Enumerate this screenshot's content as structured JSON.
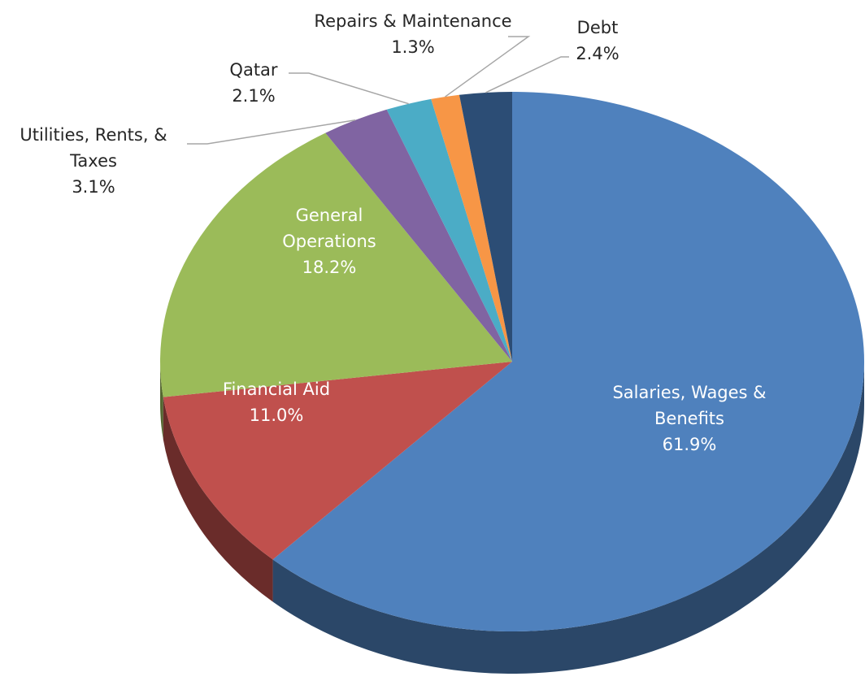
{
  "chart_data": {
    "type": "pie",
    "categories": [
      "Salaries, Wages & Benefits",
      "Financial Aid",
      "General Operations",
      "Utilities, Rents, & Taxes",
      "Qatar",
      "Repairs & Maintenance",
      "Debt"
    ],
    "values": [
      61.9,
      11.0,
      18.2,
      3.1,
      2.1,
      1.3,
      2.4
    ],
    "value_labels": [
      "61.9%",
      "11.0%",
      "18.2%",
      "3.1%",
      "2.1%",
      "1.3%",
      "2.4%"
    ],
    "colors": [
      "#4f81bd",
      "#c0504d",
      "#9bbb59",
      "#8064a2",
      "#4bacc6",
      "#f79646",
      "#2c4d75"
    ]
  }
}
